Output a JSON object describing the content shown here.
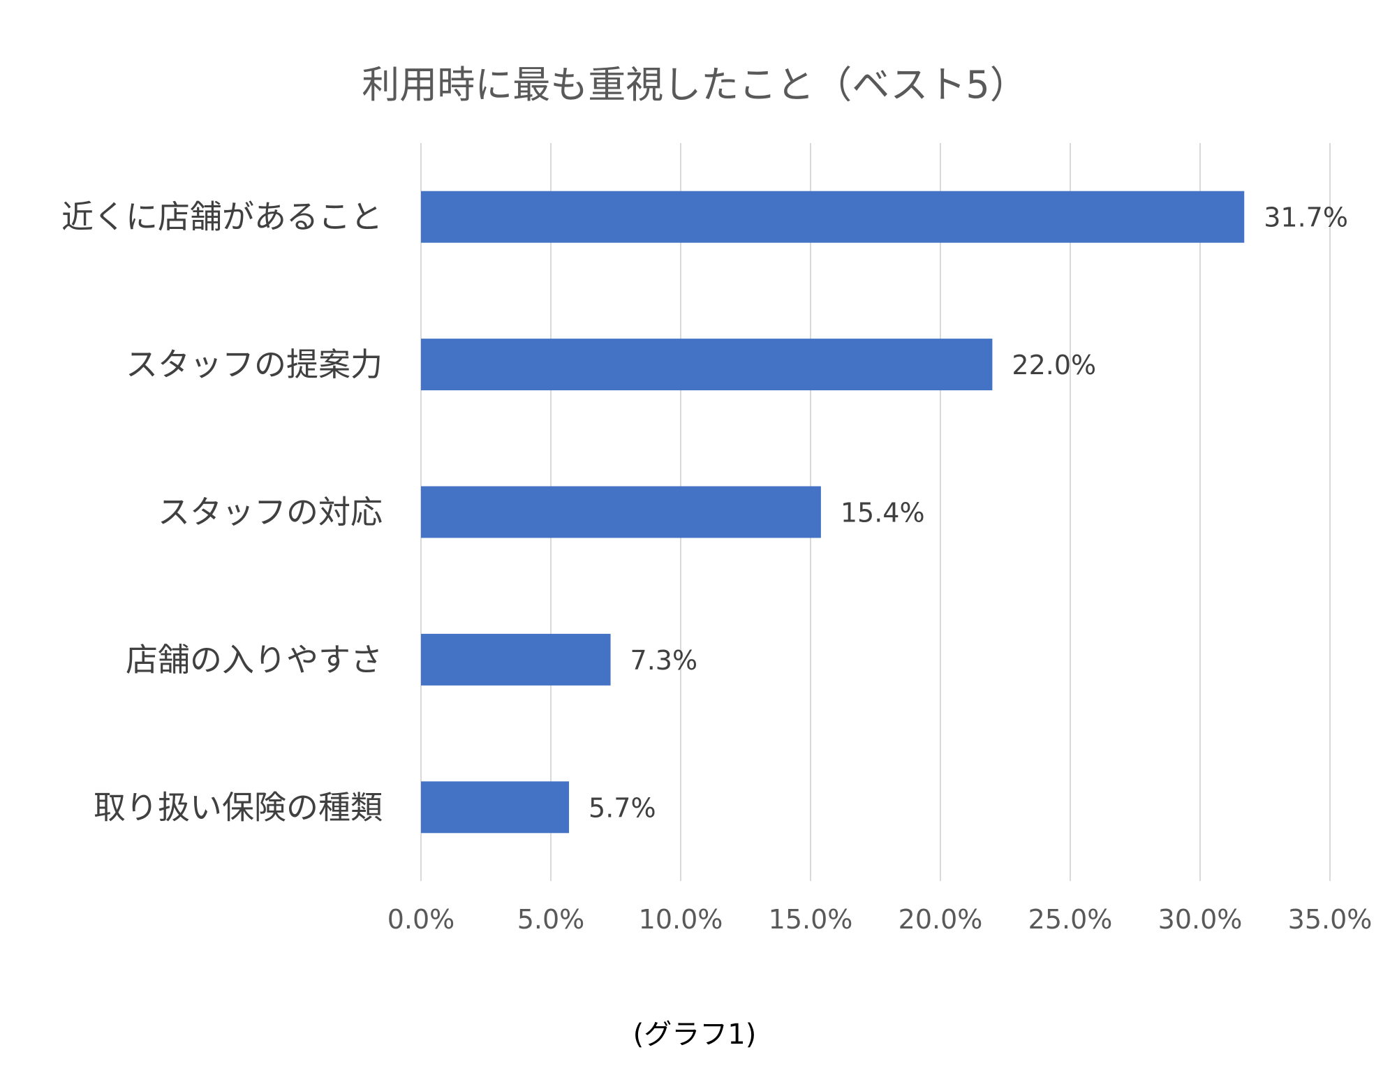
{
  "chart_data": {
    "type": "bar",
    "orientation": "horizontal",
    "title": "利用時に最も重視したこと（ベスト5）",
    "categories": [
      "近くに店舗があること",
      "スタッフの提案力",
      "スタッフの対応",
      "店舗の入りやすさ",
      "取り扱い保険の種類"
    ],
    "values": [
      31.7,
      22.0,
      15.4,
      7.3,
      5.7
    ],
    "data_labels": [
      "31.7%",
      "22.0%",
      "15.4%",
      "7.3%",
      "5.7%"
    ],
    "xlim": [
      0,
      35
    ],
    "x_ticks": [
      0,
      5,
      10,
      15,
      20,
      25,
      30,
      35
    ],
    "x_tick_labels": [
      "0.0%",
      "5.0%",
      "10.0%",
      "15.0%",
      "20.0%",
      "25.0%",
      "30.0%",
      "35.0%"
    ],
    "grid": true,
    "legend": "none",
    "bar_color": "#4472C4",
    "grid_color": "#D9D9D9"
  },
  "caption": "(グラフ1)"
}
